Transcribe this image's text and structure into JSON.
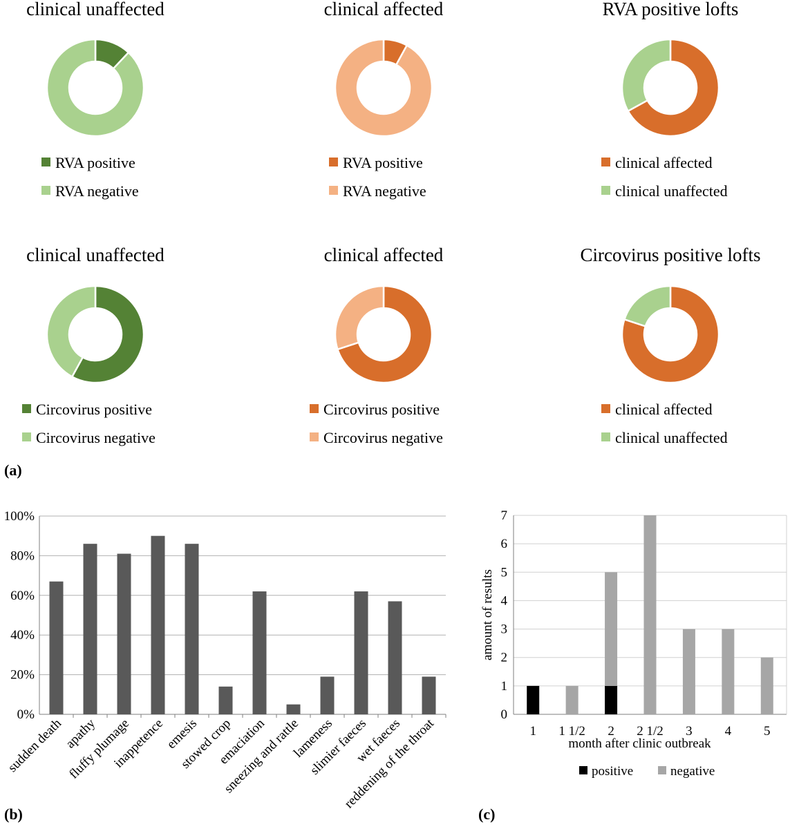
{
  "panel_labels": [
    "(a)",
    "(b)",
    "(c)"
  ],
  "chart_data": [
    {
      "type": "pie",
      "style": "donut",
      "panel": "a",
      "title": "clinical unaffected",
      "labels": [
        "RVA positive",
        "RVA negative"
      ],
      "values": [
        12,
        88
      ],
      "colors": [
        "#548235",
        "#a9d18e"
      ]
    },
    {
      "type": "pie",
      "style": "donut",
      "panel": "a",
      "title": "clinical affected",
      "labels": [
        "RVA positive",
        "RVA negative"
      ],
      "values": [
        8,
        92
      ],
      "colors": [
        "#d86e2b",
        "#f4b183"
      ]
    },
    {
      "type": "pie",
      "style": "donut",
      "panel": "a",
      "title": "RVA positive lofts",
      "labels": [
        "clinical affected",
        "clinical unaffected"
      ],
      "values": [
        67,
        33
      ],
      "colors": [
        "#d86e2b",
        "#a9d18e"
      ]
    },
    {
      "type": "pie",
      "style": "donut",
      "panel": "a",
      "title": "clinical unaffected",
      "labels": [
        "Circovirus positive",
        "Circovirus negative"
      ],
      "values": [
        58,
        42
      ],
      "colors": [
        "#548235",
        "#a9d18e"
      ]
    },
    {
      "type": "pie",
      "style": "donut",
      "panel": "a",
      "title": "clinical affected",
      "labels": [
        "Circovirus positive",
        "Circovirus negative"
      ],
      "values": [
        70,
        30
      ],
      "colors": [
        "#d86e2b",
        "#f4b183"
      ]
    },
    {
      "type": "pie",
      "style": "donut",
      "panel": "a",
      "title": "Circovirus positive lofts",
      "labels": [
        "clinical affected",
        "clinical unaffected"
      ],
      "values": [
        80,
        20
      ],
      "colors": [
        "#d86e2b",
        "#a9d18e"
      ]
    },
    {
      "type": "bar",
      "panel": "b",
      "categories": [
        "sudden death",
        "apathy",
        "fluffy plumage",
        "inappetence",
        "emesis",
        "stowed crop",
        "emaciation",
        "sneezing and rattle",
        "lameness",
        "slimier faeces",
        "wet faeces",
        "reddening of the throat"
      ],
      "values": [
        67,
        86,
        81,
        90,
        86,
        14,
        62,
        5,
        19,
        62,
        57,
        19
      ],
      "ylim": [
        0,
        100
      ],
      "yticks": [
        "0%",
        "20%",
        "40%",
        "60%",
        "80%",
        "100%"
      ],
      "color": "#595959",
      "title": "",
      "xlabel": "",
      "ylabel": ""
    },
    {
      "type": "bar",
      "stacked": true,
      "panel": "c",
      "categories": [
        "1",
        "1 1/2",
        "2",
        "2 1/2",
        "3",
        "4",
        "5"
      ],
      "series": [
        {
          "name": "positive",
          "values": [
            1,
            0,
            1,
            0,
            0,
            0,
            0
          ],
          "color": "#000000"
        },
        {
          "name": "negative",
          "values": [
            0,
            1,
            4,
            7,
            3,
            3,
            2
          ],
          "color": "#a6a6a6"
        }
      ],
      "ylim": [
        0,
        7
      ],
      "yticks": [
        "0",
        "1",
        "2",
        "3",
        "4",
        "5",
        "6",
        "7"
      ],
      "xlabel": "month after clinic outbreak",
      "ylabel": "amount of results",
      "title": ""
    }
  ]
}
